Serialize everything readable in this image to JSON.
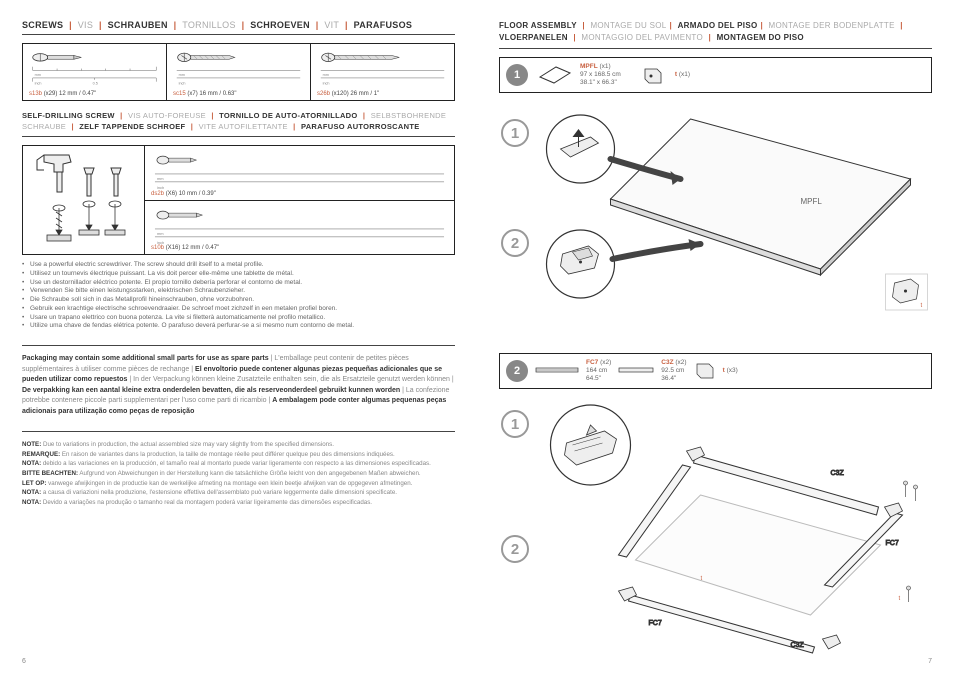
{
  "left": {
    "heading_screws": [
      {
        "t": "SCREWS",
        "dark": true
      },
      {
        "t": " | ",
        "sep": true
      },
      {
        "t": "VIS",
        "dark": false
      },
      {
        "t": " | ",
        "sep": true
      },
      {
        "t": "SCHRAUBEN",
        "dark": true
      },
      {
        "t": " | ",
        "sep": true
      },
      {
        "t": "TORNILLOS",
        "dark": false
      },
      {
        "t": " | ",
        "sep": true
      },
      {
        "t": "SCHROEVEN",
        "dark": true
      },
      {
        "t": " | ",
        "sep": true
      },
      {
        "t": "VIT",
        "dark": false
      },
      {
        "t": " | ",
        "sep": true
      },
      {
        "t": "PARAFUSOS",
        "dark": true
      }
    ],
    "screws": [
      {
        "code": "s13b",
        "qty": "(x29)",
        "size": "12 mm / 0.47\""
      },
      {
        "code": "sc15",
        "qty": "(x7)",
        "size": "16 mm / 0.63\""
      },
      {
        "code": "s26b",
        "qty": "(x120)",
        "size": "26 mm / 1\""
      }
    ],
    "heading_selfdrill": [
      {
        "t": "SELF-DRILLING SCREW",
        "dark": true
      },
      {
        "t": " | ",
        "sep": true
      },
      {
        "t": "VIS AUTO-FOREUSE",
        "dark": false
      },
      {
        "t": " | ",
        "sep": true
      },
      {
        "t": "TORNILLO DE AUTO-ATORNILLADO",
        "dark": true
      },
      {
        "t": " | ",
        "sep": true
      },
      {
        "t": "SELBSTBOHRENDE SCHRAUBE",
        "dark": false
      },
      {
        "t": " | ",
        "sep": true
      },
      {
        "t": "ZELF TAPPENDE SCHROEF",
        "dark": true
      },
      {
        "t": " | ",
        "sep": true
      },
      {
        "t": "VITE AUTOFILETTANTE",
        "dark": false
      },
      {
        "t": " | ",
        "sep": true
      },
      {
        "t": "PARAFUSO AUTORROSCANTE",
        "dark": true
      }
    ],
    "sd_screws": [
      {
        "code": "ds2b",
        "qty": "(X6)",
        "size": "10 mm / 0.39\""
      },
      {
        "code": "s10b",
        "qty": "(X16)",
        "size": "12 mm / 0.47\""
      }
    ],
    "bullets": [
      "Use a powerful electric screwdriver. The screw should drill itself to a metal profile.",
      "Utilisez un tournevis électrique puissant. La vis doit percer elle-même une tablette de métal.",
      "Use un destornillador eléctrico potente. El propio tornillo debería perforar el contorno de metal.",
      "Verwenden Sie bitte einen leistungsstarken, elektrischen Schraubenzieher.",
      "Die Schraube soll sich in das Metallprofil hineinschrauben, ohne vorzubohren.",
      "Gebruik een krachtige electrische schroevendraaier. De schroef moet zichzelf in een metalen profiel boren.",
      "Usare un trapano elettrico con buona potenza. La vite si filetterà automaticamente nel profilo metallico.",
      "Utilize uma chave de fendas elétrica potente. O parafuso deverá perfurar-se a si mesmo num contorno de metal."
    ],
    "packaging": "Packaging may contain some additional small parts for use as spare parts | L'emballage peut contenir de petites pièces supplémentaires à utiliser comme pièces de rechange | El envoltorio puede contener algunas piezas pequeñas adicionales que se pueden utilizar como repuestos | In der Verpackung können kleine Zusatzteile enthalten sein, die als Ersatzteile genutzt werden können | De verpakking kan een aantal kleine extra onderdelen bevatten, die als reserveonderdeel gebruikt kunnen worden | La confezione potrebbe contenere piccole parti supplementari per l'uso come parti di ricambio | A embalagem pode conter algumas pequenas peças adicionais para utilização como peças de reposição",
    "notes": [
      {
        "lbl": "NOTE:",
        "txt": " Due to variations in production, the actual assembled size may vary slightly from the specified dimensions."
      },
      {
        "lbl": "REMARQUE:",
        "txt": " En raison de variantes dans la production, la taille de montage réelle peut différer quelque peu des dimensions indiquées."
      },
      {
        "lbl": "NOTA:",
        "txt": " debido a las variaciones en la producción, el tamaño real al montarlo puede variar ligeramente con respecto a las dimensiones especificadas."
      },
      {
        "lbl": "BITTE BEACHTEN:",
        "txt": " Aufgrund von Abweichungen in der Herstellung kann die tatsächliche Größe leicht von den angegebenen Maßen abweichen."
      },
      {
        "lbl": "LET OP:",
        "txt": " vanwege afwijkingen in de productie kan de werkelijke afmeting na montage een klein beetje afwijken van de opgegeven afmetingen."
      },
      {
        "lbl": "NOTA:",
        "txt": " a causa di variazioni nella produzione, l'estensione effettiva dell'assemblato può variare leggermente dalle dimensioni specificate."
      },
      {
        "lbl": "NOTA:",
        "txt": " Devido a variações na produção o tamanho real da montagem poderá variar ligeiramente das dimensões especificadas."
      }
    ],
    "pagenum": "6"
  },
  "right": {
    "heading_floor": [
      {
        "t": "FLOOR ASSEMBLY",
        "dark": true
      },
      {
        "t": " | ",
        "sep": true
      },
      {
        "t": "MONTAGE DU SOL",
        "dark": false
      },
      {
        "t": "| ",
        "sep": true
      },
      {
        "t": "ARMADO DEL PISO",
        "dark": true
      },
      {
        "t": "| ",
        "sep": true
      },
      {
        "t": "MONTAGE DER BODENPLATTE",
        "dark": false
      },
      {
        "t": " | ",
        "sep": true
      },
      {
        "t": "VLOERPANELEN",
        "dark": true
      },
      {
        "t": " | ",
        "sep": true
      },
      {
        "t": "MONTAGGIO DEL PAVIMENTO",
        "dark": false
      },
      {
        "t": " | ",
        "sep": true
      },
      {
        "t": "MONTAGEM DO PISO",
        "dark": true
      }
    ],
    "bar1": {
      "step": "1",
      "items": [
        {
          "code": "MPFL",
          "qty": "(x1)",
          "dim1": "97 x 168.5 cm",
          "dim2": "38.1\" x 66.3\""
        },
        {
          "code": "t",
          "qty": "(x1)"
        }
      ]
    },
    "panel_label": "MPFL",
    "bar2": {
      "step": "2",
      "items": [
        {
          "code": "FC7",
          "qty": "(x2)",
          "dim1": "164 cm",
          "dim2": "64.5\""
        },
        {
          "code": "C3Z",
          "qty": "(x2)",
          "dim1": "92.5 cm",
          "dim2": "36.4\""
        },
        {
          "code": "t",
          "qty": "(x3)"
        }
      ]
    },
    "labels2": {
      "c3z": "C3Z",
      "fc7": "FC7",
      "t": "t"
    },
    "pagenum": "7"
  },
  "colors": {
    "accent": "#c86040",
    "line": "#333",
    "grey": "#888",
    "light": "#bbb"
  }
}
